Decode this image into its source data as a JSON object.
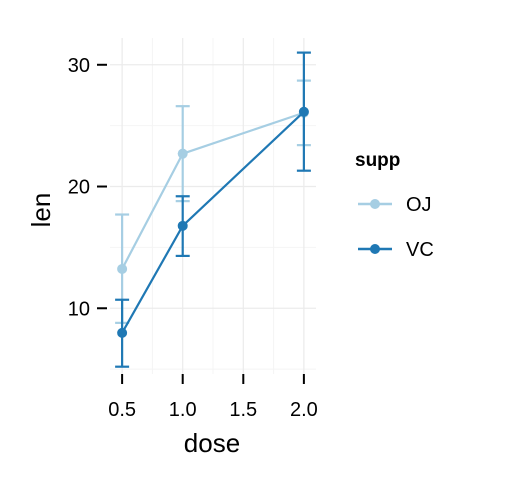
{
  "chart_data": {
    "type": "line",
    "xlabel": "dose",
    "ylabel": "len",
    "x_ticks": [
      0.5,
      1.0,
      1.5,
      2.0
    ],
    "x_tick_labels": [
      "0.5",
      "1.0",
      "1.5",
      "2.0"
    ],
    "y_ticks": [
      10,
      20,
      30
    ],
    "y_tick_labels": [
      "10",
      "20",
      "30"
    ],
    "xlim": [
      0.4,
      2.1
    ],
    "ylim": [
      4.6,
      32.2
    ],
    "grid": true,
    "legend": {
      "title": "supp",
      "placement": "right"
    },
    "series": [
      {
        "name": "OJ",
        "color": "#a6cee3",
        "x": [
          0.5,
          1.0,
          2.0
        ],
        "y": [
          13.23,
          22.7,
          26.06
        ],
        "err_low": [
          8.8,
          18.8,
          23.4
        ],
        "err_high": [
          17.7,
          26.6,
          28.7
        ]
      },
      {
        "name": "VC",
        "color": "#1f78b4",
        "x": [
          0.5,
          1.0,
          2.0
        ],
        "y": [
          7.98,
          16.77,
          26.14
        ],
        "err_low": [
          5.2,
          14.3,
          21.3
        ],
        "err_high": [
          10.7,
          19.2,
          31.0
        ]
      }
    ]
  }
}
